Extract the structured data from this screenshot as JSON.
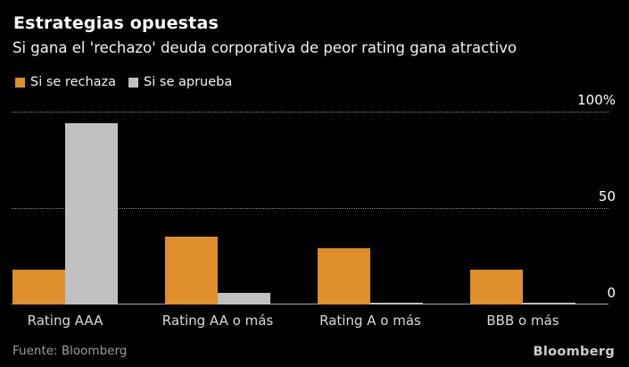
{
  "header": {
    "title": "Estrategias opuestas",
    "subtitle": "Si gana el 'rechazo' deuda corporativa de peor rating gana atractivo"
  },
  "legend": {
    "items": [
      {
        "label": "Si se rechaza",
        "color": "#DE8E2A"
      },
      {
        "label": "Si se aprueba",
        "color": "#C1C1C1"
      }
    ]
  },
  "chart_data": {
    "type": "bar",
    "title": "Estrategias opuestas",
    "subtitle": "Si gana el 'rechazo' deuda corporativa de peor rating gana atractivo",
    "categories": [
      "Rating AAA",
      "Rating AA o más",
      "Rating A o más",
      "BBB o más"
    ],
    "series": [
      {
        "name": "Si se rechaza",
        "color": "#DE8E2A",
        "values": [
          18,
          35,
          29,
          18
        ]
      },
      {
        "name": "Si se aprueba",
        "color": "#C1C1C1",
        "values": [
          94,
          6,
          1,
          1
        ]
      }
    ],
    "unit": "%",
    "xlabel": "",
    "ylabel": "",
    "ylim": [
      0,
      100
    ],
    "yticks": [
      {
        "value": 100,
        "label": "100%"
      },
      {
        "value": 50,
        "label": "50"
      },
      {
        "value": 0,
        "label": "0"
      }
    ],
    "grid": "horizontal-dotted",
    "legend_position": "top-left"
  },
  "footer": {
    "source": "Fuente: Bloomberg",
    "brand": "Bloomberg"
  },
  "colors": {
    "background": "#000000",
    "text": "#FFFFFF",
    "muted_text": "#9E9E9E",
    "gridline": "#8A8A8A",
    "axis_line": "#A6A6A6",
    "series_rechaza": "#DE8E2A",
    "series_aprueba": "#C1C1C1"
  }
}
